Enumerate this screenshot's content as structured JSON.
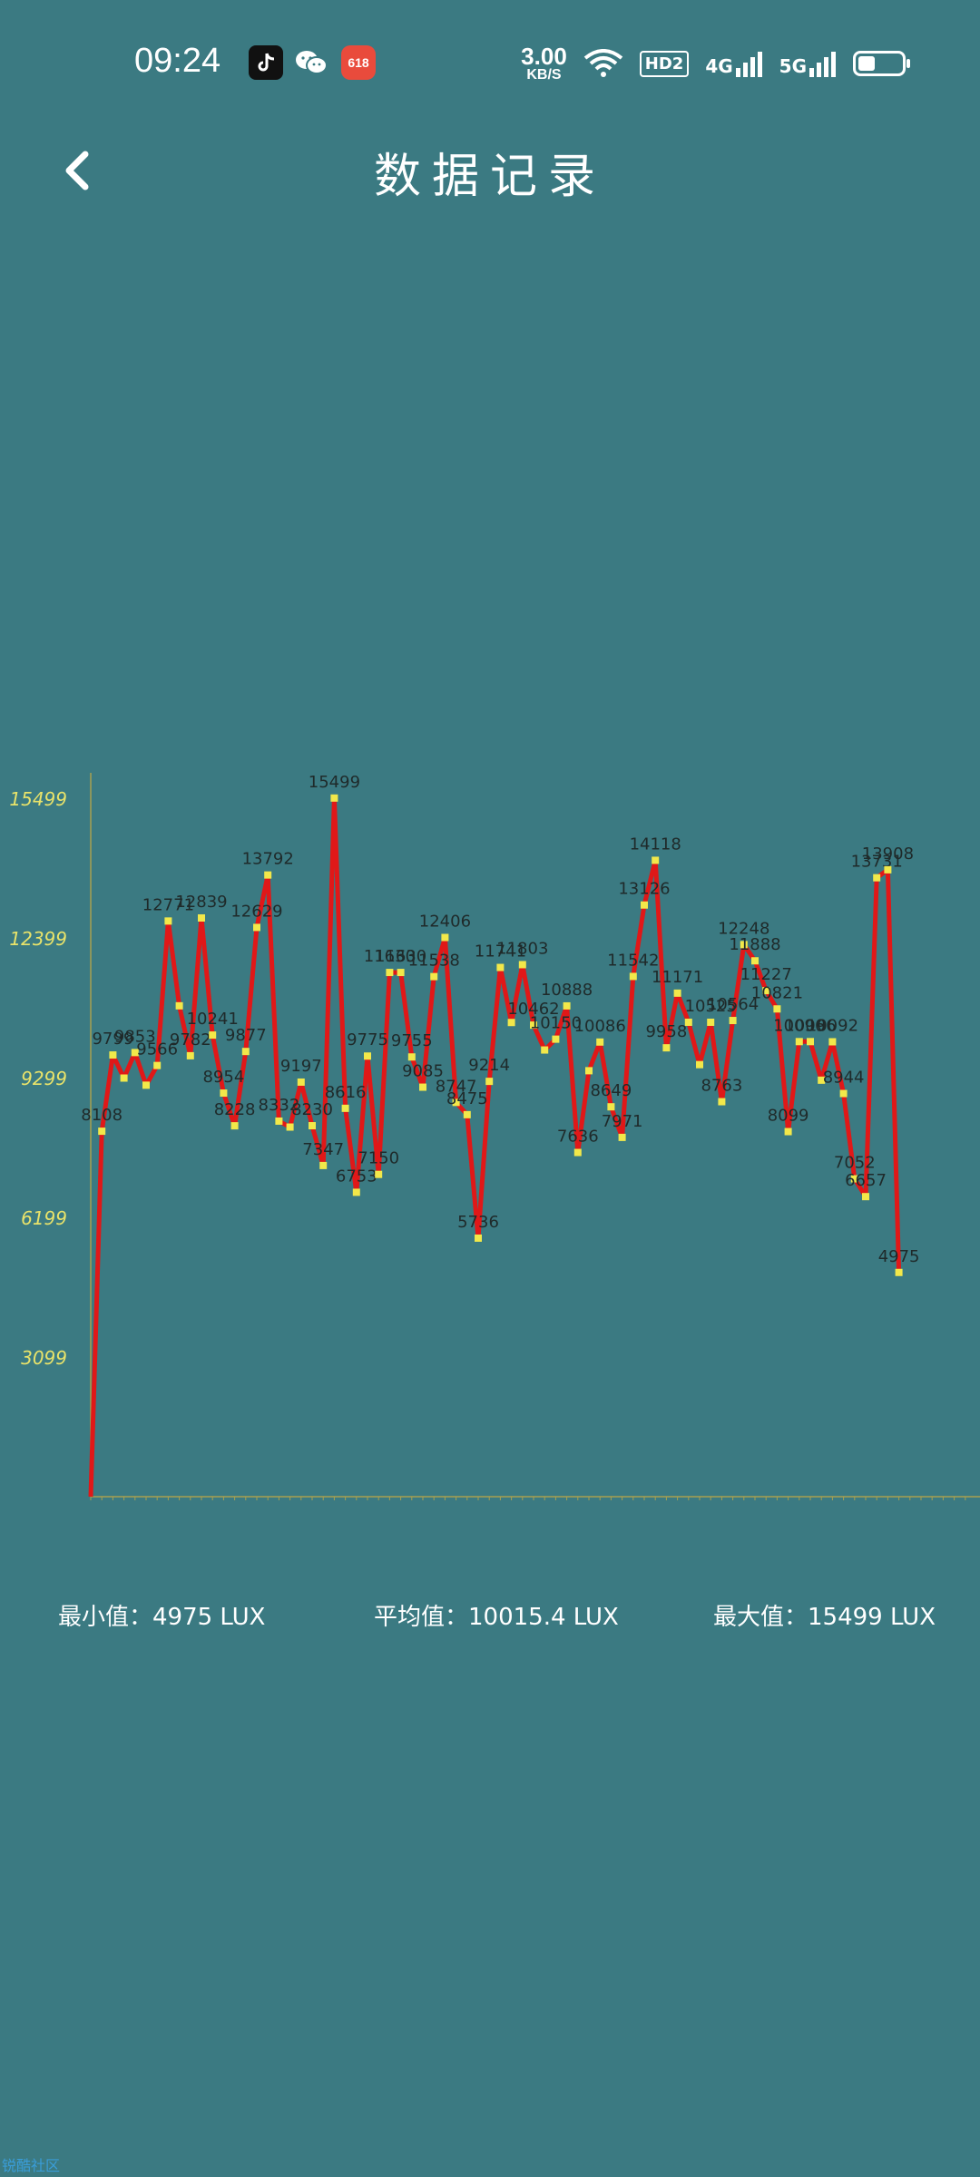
{
  "status_bar": {
    "time": "09:24",
    "app_icons": [
      "tiktok-icon",
      "wechat-icon",
      "618-app-icon"
    ],
    "speed_value": "3.00",
    "speed_unit": "KB/S",
    "hd_label": "HD2",
    "signal_1": "4G",
    "signal_2": "5G"
  },
  "header": {
    "back_icon": "chevron-left-icon",
    "title": "数据记录"
  },
  "chart_data": {
    "type": "line",
    "yticks": [
      3099,
      6199,
      9299,
      12399,
      15499
    ],
    "ylim": [
      0,
      16300
    ],
    "values": [
      0,
      8108,
      9799,
      9287,
      9853,
      9129,
      9566,
      12771,
      10890,
      9782,
      12839,
      10241,
      8954,
      8228,
      9877,
      12629,
      13792,
      8332,
      8200,
      9197,
      8230,
      7347,
      15499,
      8616,
      6753,
      9775,
      7150,
      11630,
      11630,
      9755,
      9085,
      11538,
      12406,
      8747,
      8475,
      5736,
      9214,
      11741,
      10520,
      11803,
      10462,
      9910,
      10150,
      10888,
      7636,
      9450,
      10086,
      8649,
      7971,
      11542,
      13126,
      14118,
      9958,
      11171,
      10525,
      9585,
      10525,
      8763,
      10564,
      12248,
      11888,
      11227,
      10821,
      8099,
      10096,
      10096,
      9240,
      10092,
      8944,
      7052,
      6657,
      13731,
      13908,
      4975
    ],
    "point_labels": [
      "",
      "8108",
      "9799",
      "",
      "9853",
      "",
      "9566",
      "12771",
      "",
      "9782",
      "12839",
      "10241",
      "8954",
      "8228",
      "9877",
      "12629",
      "13792",
      "8332",
      "",
      "9197",
      "8230",
      "7347",
      "15499",
      "8616",
      "6753",
      "9775",
      "7150",
      "11630",
      "11630",
      "9755",
      "9085",
      "11538",
      "12406",
      "8747",
      "8475",
      "5736",
      "9214",
      "11741",
      "",
      "11803",
      "10462",
      "",
      "10150",
      "10888",
      "7636",
      "",
      "10086",
      "8649",
      "7971",
      "11542",
      "13126",
      "14118",
      "9958",
      "11171",
      "",
      "",
      "10525",
      "8763",
      "10564",
      "12248",
      "11888",
      "11227",
      "10821",
      "8099",
      "10096",
      "10096",
      "",
      "10092",
      "8944",
      "7052",
      "6657",
      "13731",
      "13908",
      "4975"
    ],
    "colors": {
      "line": "#e01818",
      "marker": "#f2e84a",
      "axis": "#a8a050",
      "ytick": "#e9e36a",
      "label": "#1f2a2a"
    }
  },
  "stats": {
    "min": "最小值：4975 LUX",
    "avg": "平均值：10015.4 LUX",
    "max": "最大值：15499 LUX"
  },
  "watermark": "锐酷社区"
}
